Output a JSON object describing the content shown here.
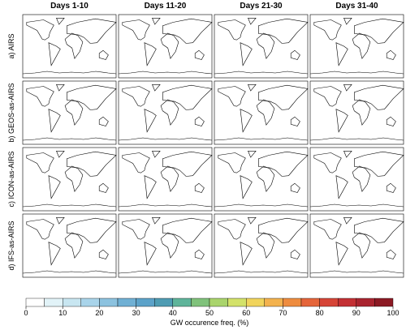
{
  "columns": [
    "Days 1-10",
    "Days 11-20",
    "Days 21-30",
    "Days 31-40"
  ],
  "rows": [
    "a) AIRS",
    "b) GEOS-as-AIRS",
    "c) ICON-as-AIRS",
    "d) IFS-as-AIRS"
  ],
  "colorbar": {
    "label": "GW occurence freq. (%)",
    "lim": [
      0,
      100
    ],
    "ticks": [
      0,
      10,
      20,
      30,
      40,
      50,
      60,
      70,
      80,
      90,
      100
    ],
    "bounds": [
      0,
      5,
      10,
      15,
      20,
      25,
      30,
      35,
      40,
      45,
      50,
      55,
      60,
      65,
      70,
      75,
      80,
      85,
      90,
      95,
      100
    ],
    "colors": [
      "#ffffff",
      "#e2f3f8",
      "#c8e6f1",
      "#a9d4ea",
      "#8cc2df",
      "#70b0d4",
      "#5ca2c9",
      "#4f9cb3",
      "#5fb49a",
      "#80c27b",
      "#a9d46c",
      "#d3e26a",
      "#f1d45c",
      "#f3b24e",
      "#ee8c3f",
      "#e5653a",
      "#d64537",
      "#c33034",
      "#a9242f",
      "#8c1a24"
    ]
  }
}
